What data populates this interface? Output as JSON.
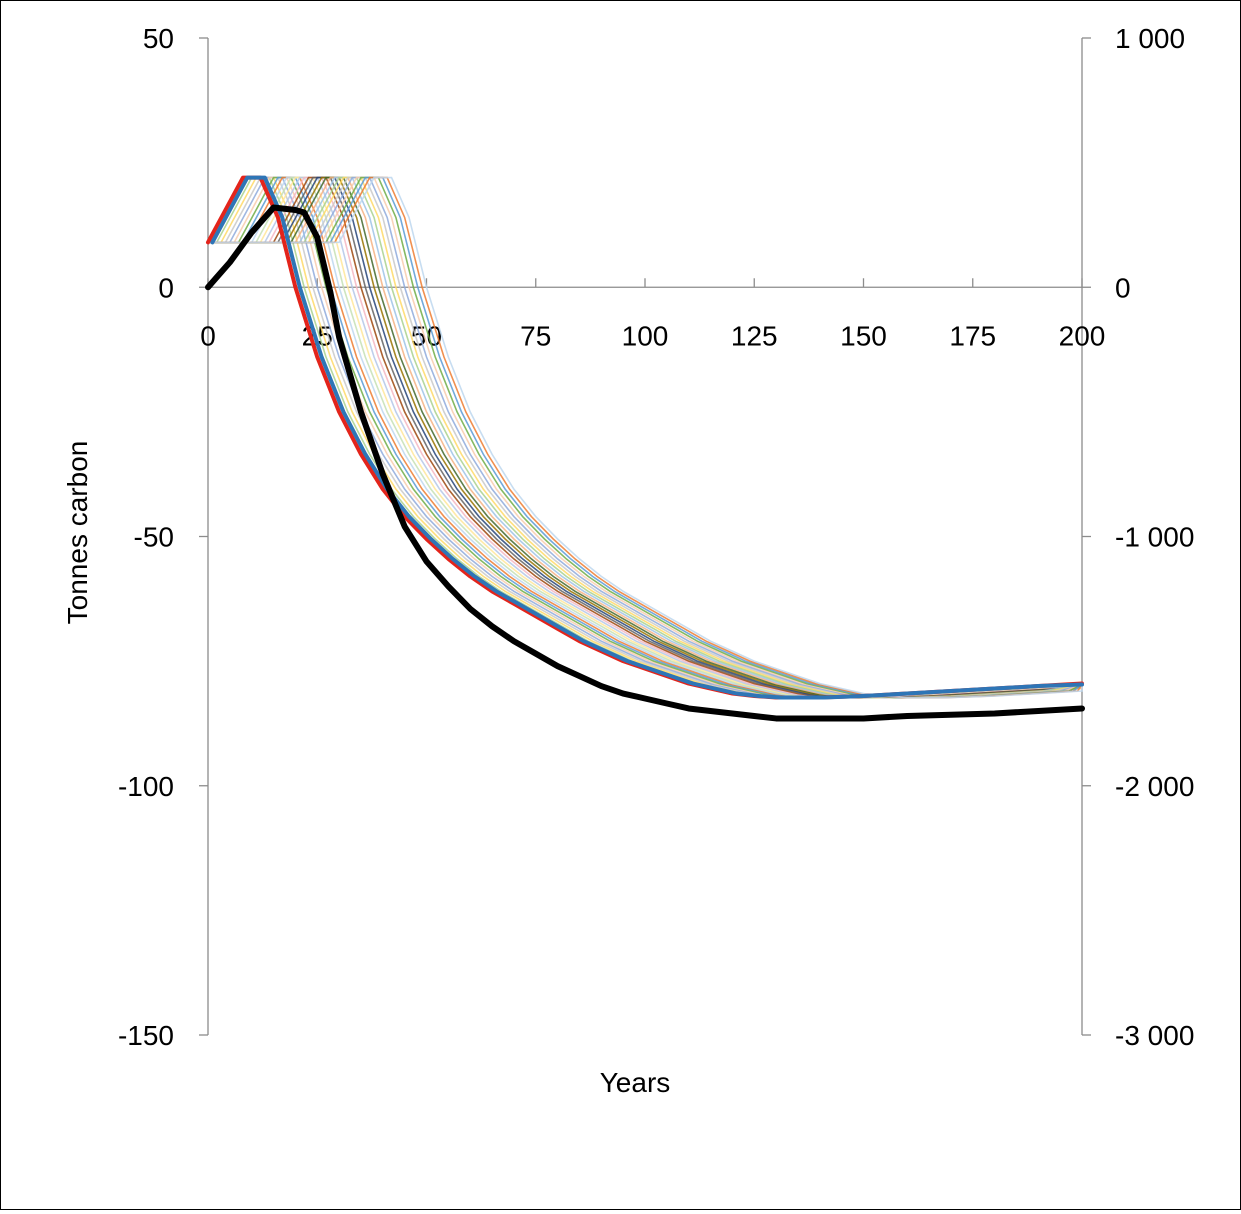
{
  "chart_data": {
    "type": "line",
    "title": "",
    "xlabel": "Years",
    "ylabel": "Tonnes carbon",
    "xlim": [
      0,
      200
    ],
    "ylim": [
      -150,
      50
    ],
    "y2lim": [
      -3000,
      1000
    ],
    "x_ticks": [
      "0",
      "25",
      "50",
      "75",
      "100",
      "125",
      "150",
      "175",
      "200"
    ],
    "y_ticks": [
      "50",
      "0",
      "-50",
      "-100",
      "-150"
    ],
    "y2_ticks": [
      "1 000",
      "0",
      "-1 000",
      "-2 000",
      "-3 000"
    ],
    "grid": false,
    "legend": "none",
    "bundle": {
      "description_of_curves": "family of shifted response curves, one per planting year offset 0-30",
      "offsets": [
        0,
        1,
        2,
        3,
        4,
        5,
        6,
        7,
        8,
        9,
        10,
        11,
        12,
        13,
        14,
        15,
        16,
        17,
        18,
        19,
        20,
        21,
        22,
        23,
        24,
        25,
        26,
        27,
        28,
        29,
        30
      ],
      "base_curve": {
        "x": [
          0,
          4,
          8,
          12,
          16,
          20,
          25,
          30,
          35,
          40,
          45,
          50,
          55,
          60,
          65,
          70,
          75,
          80,
          85,
          90,
          95,
          100,
          105,
          110,
          115,
          120,
          125,
          130,
          135,
          140,
          150,
          160,
          170,
          180,
          190,
          200
        ],
        "y": [
          9,
          15.5,
          22,
          22,
          14,
          0,
          -14,
          -25,
          -33.5,
          -40.5,
          -46,
          -50.5,
          -54.5,
          -58,
          -61,
          -63.5,
          -66,
          -68.5,
          -71,
          -73,
          -75,
          -76.5,
          -78,
          -79.5,
          -80.5,
          -81.5,
          -82,
          -82.3,
          -82.3,
          -82.3,
          -82,
          -81.5,
          -81,
          -80.5,
          -80,
          -79.5
        ]
      },
      "plateau_low": 9,
      "plateau_high": 22
    },
    "series": [
      {
        "color": "#e3241b",
        "x": [
          0,
          4,
          8,
          12,
          16,
          20,
          25,
          30,
          35,
          40,
          45,
          50,
          55,
          60,
          65,
          70,
          75,
          80,
          85,
          90,
          95,
          100,
          105,
          110,
          115,
          120,
          125,
          130,
          135,
          140,
          150,
          160,
          170,
          180,
          190,
          200
        ],
        "y": [
          9,
          15.5,
          22,
          22,
          14,
          0,
          -14,
          -25,
          -33.5,
          -40.5,
          -46,
          -50.5,
          -54.5,
          -58,
          -61,
          -63.5,
          -66,
          -68.5,
          -71,
          -73,
          -75,
          -76.5,
          -78,
          -79.5,
          -80.5,
          -81.5,
          -82,
          -82.3,
          -82.3,
          -82.3,
          -82,
          -81.5,
          -81,
          -80.5,
          -80,
          -79.5
        ]
      },
      {
        "color": "#2e75b6",
        "x": [
          1,
          5,
          9,
          13,
          17,
          21,
          26,
          31,
          36,
          41,
          46,
          51,
          56,
          61,
          66,
          71,
          76,
          81,
          86,
          91,
          96,
          101,
          106,
          111,
          116,
          121,
          126,
          131,
          136,
          141,
          150,
          160,
          170,
          180,
          190,
          200
        ],
        "y": [
          9,
          15.5,
          22,
          22,
          14,
          0,
          -14,
          -25,
          -33.5,
          -40.5,
          -46,
          -50.5,
          -54.5,
          -58,
          -61,
          -63.5,
          -66,
          -68.5,
          -71,
          -73,
          -75,
          -76.5,
          -78,
          -79.5,
          -80.5,
          -81.5,
          -82,
          -82.3,
          -82.3,
          -82.3,
          -82,
          -81.5,
          -81,
          -80.5,
          -80,
          -79.7
        ]
      },
      {
        "color": "#000000",
        "axis": "right",
        "x": [
          0,
          2,
          5,
          10,
          15,
          20,
          22,
          25,
          28,
          30,
          35,
          40,
          45,
          50,
          55,
          60,
          65,
          70,
          75,
          80,
          85,
          90,
          95,
          100,
          105,
          110,
          115,
          120,
          125,
          130,
          135,
          140,
          150,
          160,
          170,
          180,
          190,
          200
        ],
        "y": [
          0,
          40,
          100,
          220,
          320,
          310,
          300,
          200,
          -20,
          -200,
          -500,
          -750,
          -960,
          -1100,
          -1200,
          -1290,
          -1360,
          -1420,
          -1470,
          -1520,
          -1560,
          -1600,
          -1630,
          -1650,
          -1670,
          -1690,
          -1700,
          -1710,
          -1720,
          -1730,
          -1730,
          -1730,
          -1730,
          -1720,
          -1715,
          -1710,
          -1700,
          -1690
        ]
      }
    ]
  }
}
